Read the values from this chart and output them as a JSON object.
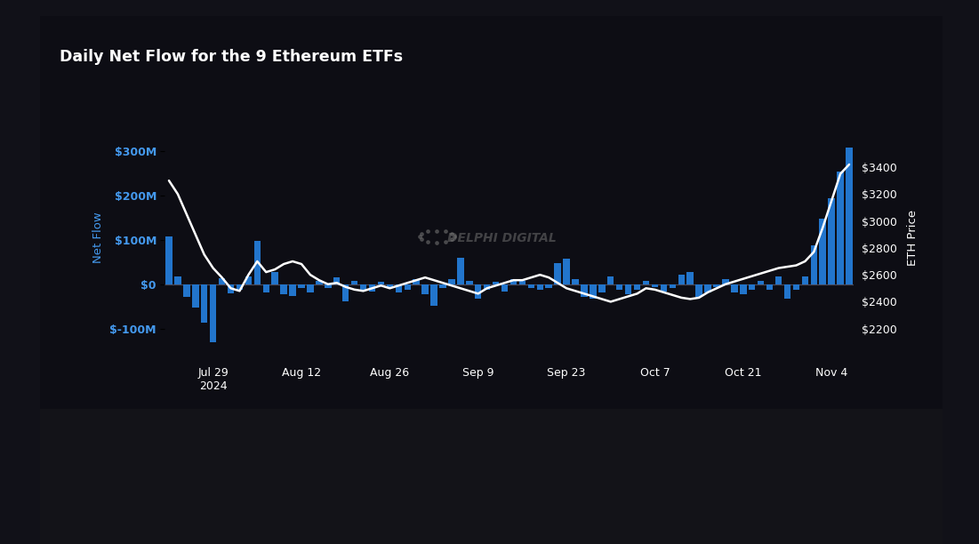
{
  "title": "Daily Net Flow for the 9 Ethereum ETFs",
  "outer_bg": "#111118",
  "card_bg": "#0d0d14",
  "bar_color": "#2275cc",
  "line_color": "#ffffff",
  "zero_line_color": "#4a4a5a",
  "ylabel_left": "Net Flow",
  "ylabel_right": "ETH Price",
  "yticks_left": [
    -100,
    0,
    100,
    200,
    300
  ],
  "yticks_left_labels": [
    "$-100M",
    "$0",
    "$100M",
    "$200M",
    "$300M"
  ],
  "ylim_left": [
    -160,
    370
  ],
  "yticks_right": [
    2200,
    2400,
    2600,
    2800,
    3000,
    3200,
    3400
  ],
  "yticks_right_labels": [
    "$2200",
    "$2400",
    "$2600",
    "$2800",
    "$3000",
    "$3200",
    "$3400"
  ],
  "ylim_right": [
    2000,
    3750
  ],
  "xtick_labels": [
    "Jul 29\n2024",
    "Aug 12",
    "Aug 26",
    "Sep 9",
    "Sep 23",
    "Oct 7",
    "Oct 21",
    "Nov 4"
  ],
  "xtick_positions": [
    5,
    15,
    25,
    35,
    45,
    55,
    65,
    75
  ],
  "watermark_text": "DELPHI DIGITAL",
  "net_flows": [
    108,
    18,
    -28,
    -52,
    -85,
    -130,
    15,
    -20,
    -12,
    18,
    98,
    -18,
    28,
    -22,
    -25,
    -8,
    -18,
    8,
    -8,
    16,
    -38,
    8,
    -12,
    -15,
    6,
    -8,
    -18,
    -12,
    12,
    -22,
    -48,
    -8,
    12,
    60,
    8,
    -32,
    -12,
    6,
    -15,
    12,
    8,
    -8,
    -12,
    -8,
    48,
    58,
    12,
    -28,
    -32,
    -18,
    18,
    -12,
    -22,
    -12,
    8,
    -6,
    -15,
    -8,
    22,
    28,
    -28,
    -18,
    -6,
    12,
    -18,
    -22,
    -12,
    8,
    -12,
    18,
    -32,
    -12,
    18,
    88,
    148,
    195,
    255,
    308
  ],
  "eth_prices": [
    3300,
    3200,
    3050,
    2900,
    2750,
    2650,
    2580,
    2500,
    2480,
    2600,
    2700,
    2620,
    2640,
    2680,
    2700,
    2680,
    2600,
    2560,
    2530,
    2540,
    2510,
    2490,
    2480,
    2500,
    2520,
    2500,
    2520,
    2540,
    2560,
    2580,
    2560,
    2540,
    2520,
    2500,
    2480,
    2460,
    2500,
    2520,
    2540,
    2560,
    2560,
    2580,
    2600,
    2580,
    2540,
    2500,
    2480,
    2460,
    2440,
    2420,
    2400,
    2420,
    2440,
    2460,
    2500,
    2490,
    2470,
    2450,
    2430,
    2420,
    2430,
    2470,
    2500,
    2530,
    2550,
    2570,
    2590,
    2610,
    2630,
    2650,
    2660,
    2670,
    2700,
    2770,
    2950,
    3150,
    3350,
    3420
  ]
}
